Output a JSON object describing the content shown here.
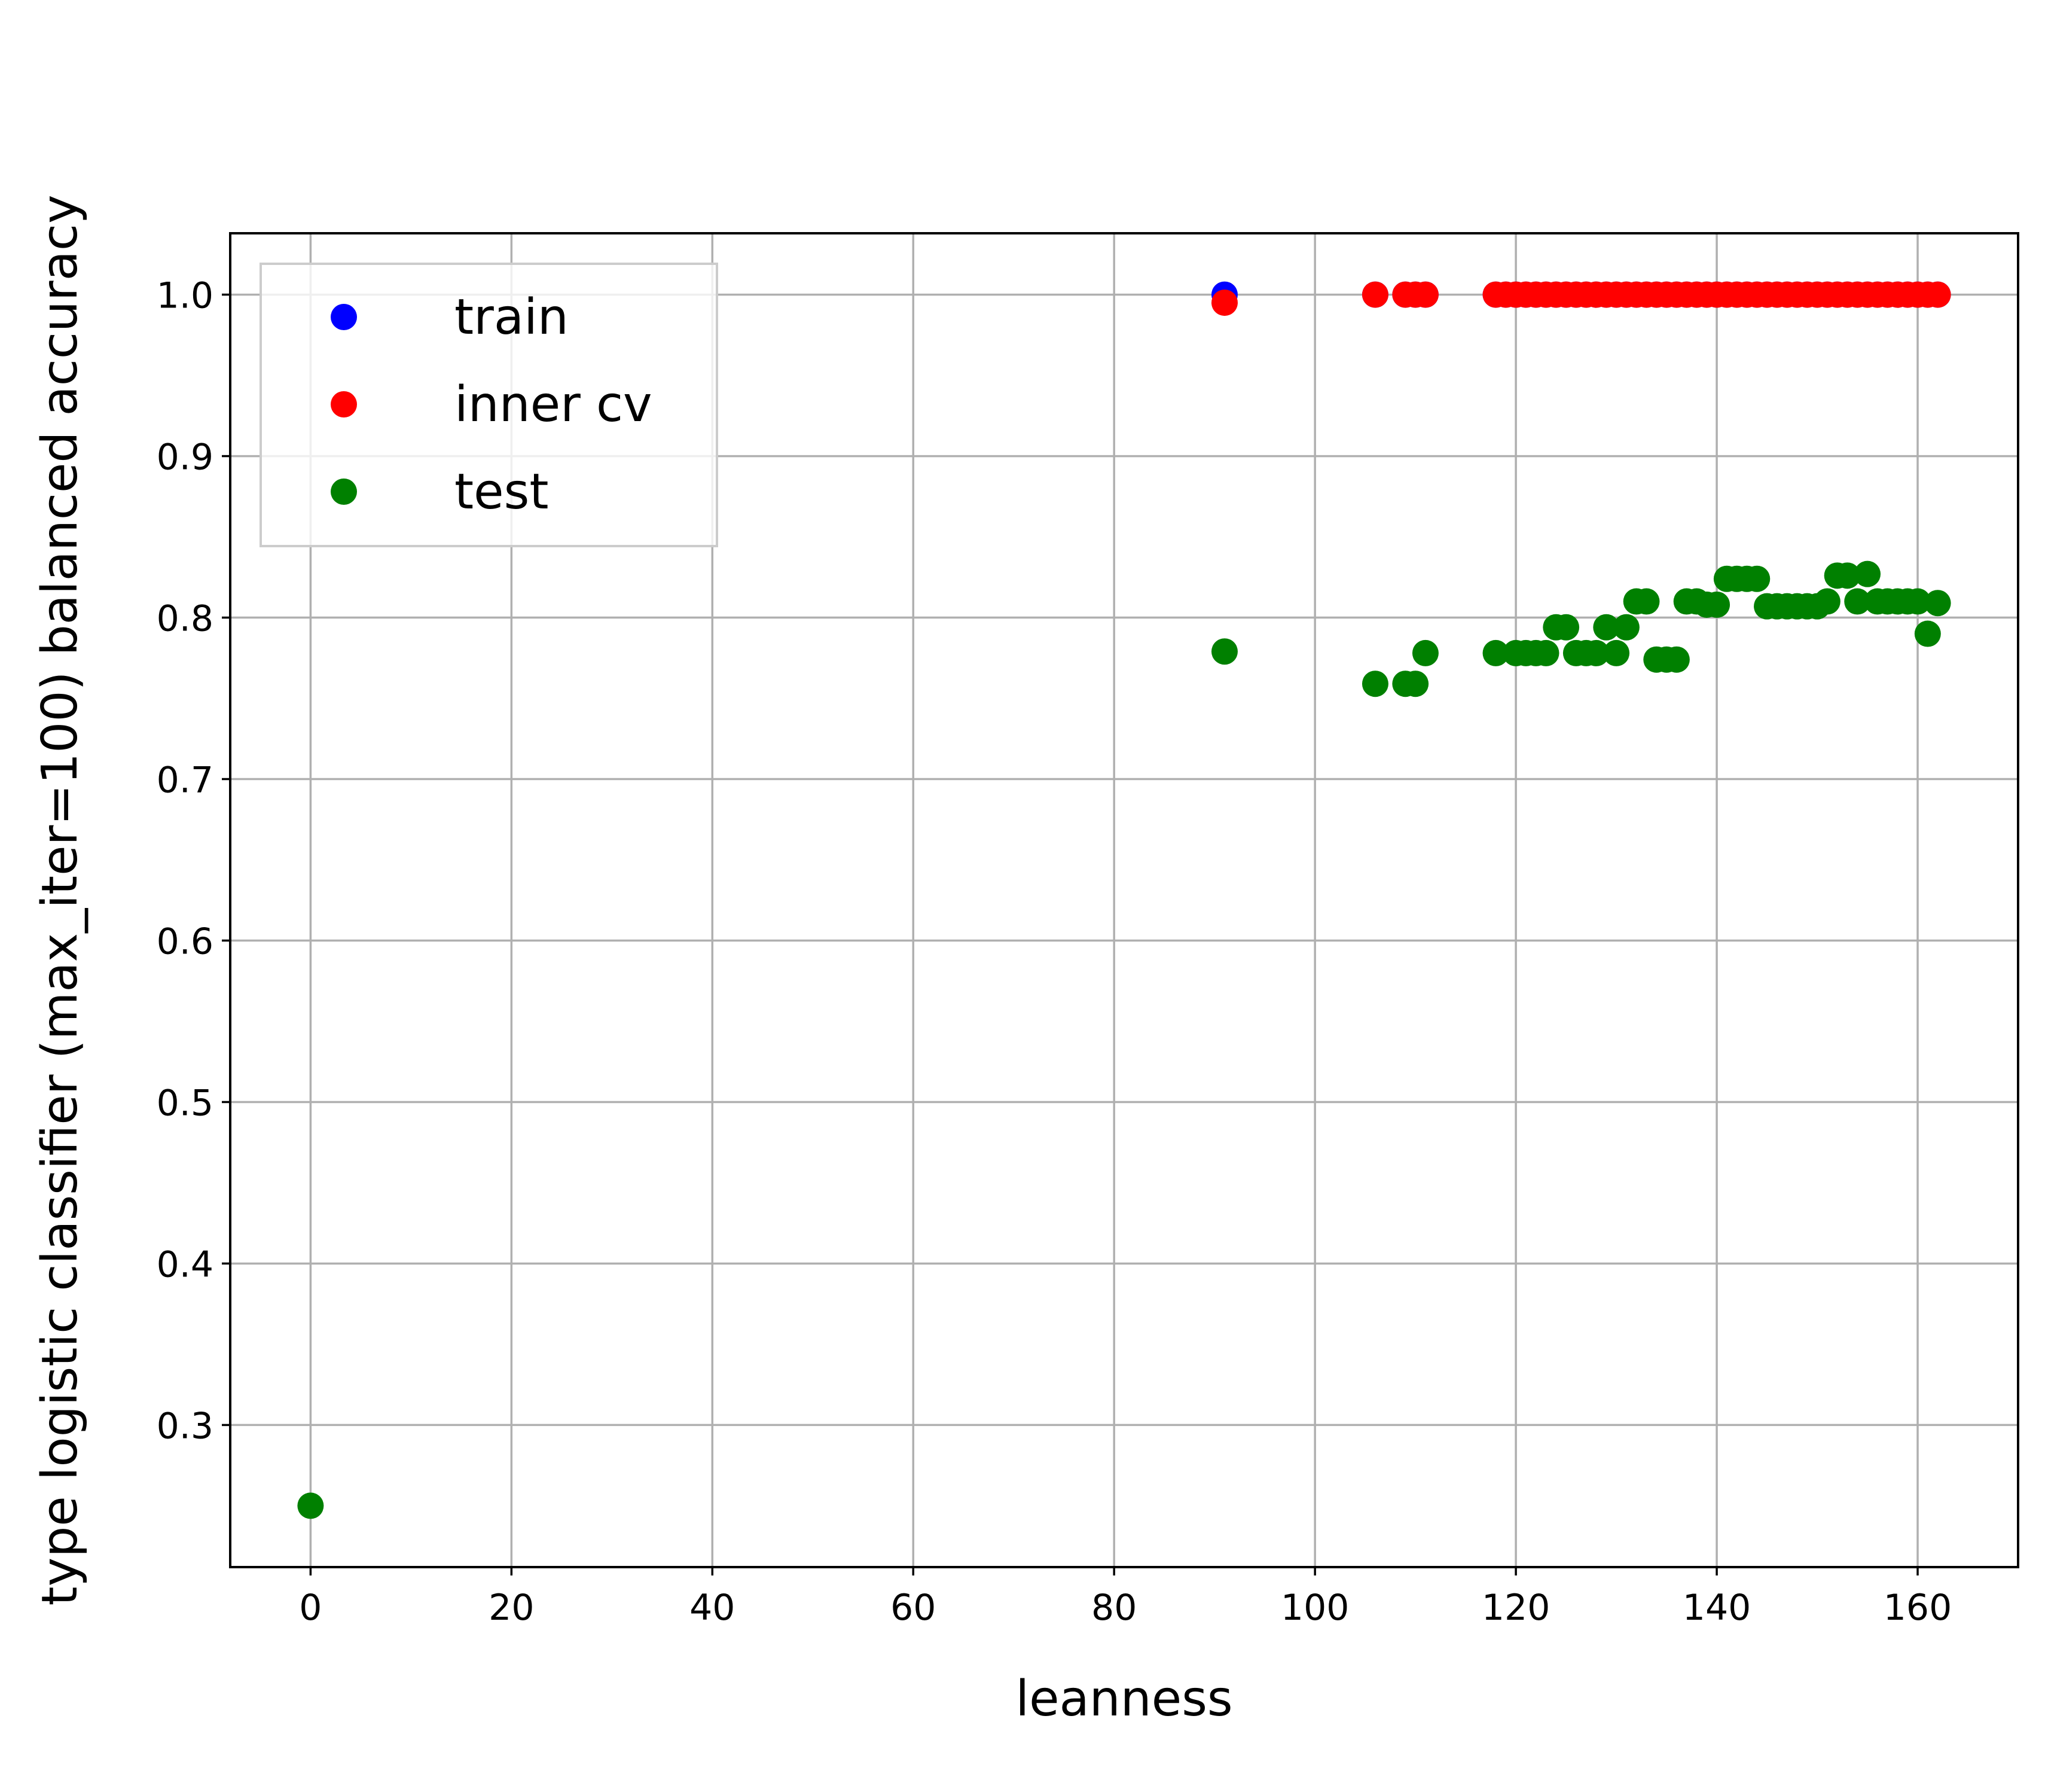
{
  "chart_data": {
    "type": "scatter",
    "title": "",
    "xlabel": "leanness",
    "ylabel": "type logistic classifier (max_iter=100) balanced accuracy",
    "xlim": [
      -8,
      170
    ],
    "ylim": [
      0.212,
      1.038
    ],
    "xticks": [
      0,
      20,
      40,
      60,
      80,
      100,
      120,
      140,
      160
    ],
    "yticks": [
      0.3,
      0.4,
      0.5,
      0.6,
      0.7,
      0.8,
      0.9,
      1.0
    ],
    "xtick_labels": [
      "0",
      "20",
      "40",
      "60",
      "80",
      "100",
      "120",
      "140",
      "160"
    ],
    "ytick_labels": [
      "0.3",
      "0.4",
      "0.5",
      "0.6",
      "0.7",
      "0.8",
      "0.9",
      "1.0"
    ],
    "grid": true,
    "legend_position": "top-left",
    "series": [
      {
        "name": "train",
        "color": "#0000ff",
        "points": [
          [
            91,
            1.0
          ],
          [
            106,
            1.0
          ],
          [
            109,
            1.0
          ],
          [
            110,
            1.0
          ],
          [
            111,
            1.0
          ],
          [
            118,
            1.0
          ],
          [
            119,
            1.0
          ],
          [
            120,
            1.0
          ],
          [
            121,
            1.0
          ],
          [
            122,
            1.0
          ],
          [
            123,
            1.0
          ],
          [
            124,
            1.0
          ],
          [
            125,
            1.0
          ],
          [
            126,
            1.0
          ],
          [
            127,
            1.0
          ],
          [
            128,
            1.0
          ],
          [
            129,
            1.0
          ],
          [
            130,
            1.0
          ],
          [
            131,
            1.0
          ],
          [
            132,
            1.0
          ],
          [
            133,
            1.0
          ],
          [
            134,
            1.0
          ],
          [
            135,
            1.0
          ],
          [
            136,
            1.0
          ],
          [
            137,
            1.0
          ],
          [
            138,
            1.0
          ],
          [
            139,
            1.0
          ],
          [
            140,
            1.0
          ],
          [
            141,
            1.0
          ],
          [
            142,
            1.0
          ],
          [
            143,
            1.0
          ],
          [
            144,
            1.0
          ],
          [
            145,
            1.0
          ],
          [
            146,
            1.0
          ],
          [
            147,
            1.0
          ],
          [
            148,
            1.0
          ],
          [
            149,
            1.0
          ],
          [
            150,
            1.0
          ],
          [
            151,
            1.0
          ],
          [
            152,
            1.0
          ],
          [
            153,
            1.0
          ],
          [
            154,
            1.0
          ],
          [
            155,
            1.0
          ],
          [
            156,
            1.0
          ],
          [
            157,
            1.0
          ],
          [
            158,
            1.0
          ],
          [
            159,
            1.0
          ],
          [
            160,
            1.0
          ],
          [
            161,
            1.0
          ],
          [
            162,
            1.0
          ]
        ]
      },
      {
        "name": "inner cv",
        "color": "#ff0000",
        "points": [
          [
            91,
            0.995
          ],
          [
            106,
            1.0
          ],
          [
            109,
            1.0
          ],
          [
            110,
            1.0
          ],
          [
            111,
            1.0
          ],
          [
            118,
            1.0
          ],
          [
            119,
            1.0
          ],
          [
            120,
            1.0
          ],
          [
            121,
            1.0
          ],
          [
            122,
            1.0
          ],
          [
            123,
            1.0
          ],
          [
            124,
            1.0
          ],
          [
            125,
            1.0
          ],
          [
            126,
            1.0
          ],
          [
            127,
            1.0
          ],
          [
            128,
            1.0
          ],
          [
            129,
            1.0
          ],
          [
            130,
            1.0
          ],
          [
            131,
            1.0
          ],
          [
            132,
            1.0
          ],
          [
            133,
            1.0
          ],
          [
            134,
            1.0
          ],
          [
            135,
            1.0
          ],
          [
            136,
            1.0
          ],
          [
            137,
            1.0
          ],
          [
            138,
            1.0
          ],
          [
            139,
            1.0
          ],
          [
            140,
            1.0
          ],
          [
            141,
            1.0
          ],
          [
            142,
            1.0
          ],
          [
            143,
            1.0
          ],
          [
            144,
            1.0
          ],
          [
            145,
            1.0
          ],
          [
            146,
            1.0
          ],
          [
            147,
            1.0
          ],
          [
            148,
            1.0
          ],
          [
            149,
            1.0
          ],
          [
            150,
            1.0
          ],
          [
            151,
            1.0
          ],
          [
            152,
            1.0
          ],
          [
            153,
            1.0
          ],
          [
            154,
            1.0
          ],
          [
            155,
            1.0
          ],
          [
            156,
            1.0
          ],
          [
            157,
            1.0
          ],
          [
            158,
            1.0
          ],
          [
            159,
            1.0
          ],
          [
            160,
            1.0
          ],
          [
            161,
            1.0
          ],
          [
            162,
            1.0
          ]
        ]
      },
      {
        "name": "test",
        "color": "#008000",
        "points": [
          [
            0,
            0.25
          ],
          [
            91,
            0.779
          ],
          [
            106,
            0.759
          ],
          [
            109,
            0.759
          ],
          [
            110,
            0.759
          ],
          [
            111,
            0.778
          ],
          [
            118,
            0.778
          ],
          [
            120,
            0.778
          ],
          [
            121,
            0.778
          ],
          [
            122,
            0.778
          ],
          [
            123,
            0.778
          ],
          [
            124,
            0.794
          ],
          [
            125,
            0.794
          ],
          [
            126,
            0.778
          ],
          [
            127,
            0.778
          ],
          [
            128,
            0.778
          ],
          [
            129,
            0.794
          ],
          [
            130,
            0.778
          ],
          [
            131,
            0.794
          ],
          [
            132,
            0.81
          ],
          [
            133,
            0.81
          ],
          [
            134,
            0.774
          ],
          [
            135,
            0.774
          ],
          [
            136,
            0.774
          ],
          [
            137,
            0.81
          ],
          [
            138,
            0.81
          ],
          [
            139,
            0.808
          ],
          [
            140,
            0.808
          ],
          [
            141,
            0.824
          ],
          [
            142,
            0.824
          ],
          [
            143,
            0.824
          ],
          [
            144,
            0.824
          ],
          [
            145,
            0.807
          ],
          [
            146,
            0.807
          ],
          [
            147,
            0.807
          ],
          [
            148,
            0.807
          ],
          [
            149,
            0.807
          ],
          [
            150,
            0.807
          ],
          [
            151,
            0.81
          ],
          [
            152,
            0.826
          ],
          [
            153,
            0.826
          ],
          [
            154,
            0.81
          ],
          [
            155,
            0.827
          ],
          [
            156,
            0.81
          ],
          [
            157,
            0.81
          ],
          [
            158,
            0.81
          ],
          [
            159,
            0.81
          ],
          [
            160,
            0.81
          ],
          [
            161,
            0.79
          ],
          [
            162,
            0.809
          ]
        ]
      }
    ]
  }
}
